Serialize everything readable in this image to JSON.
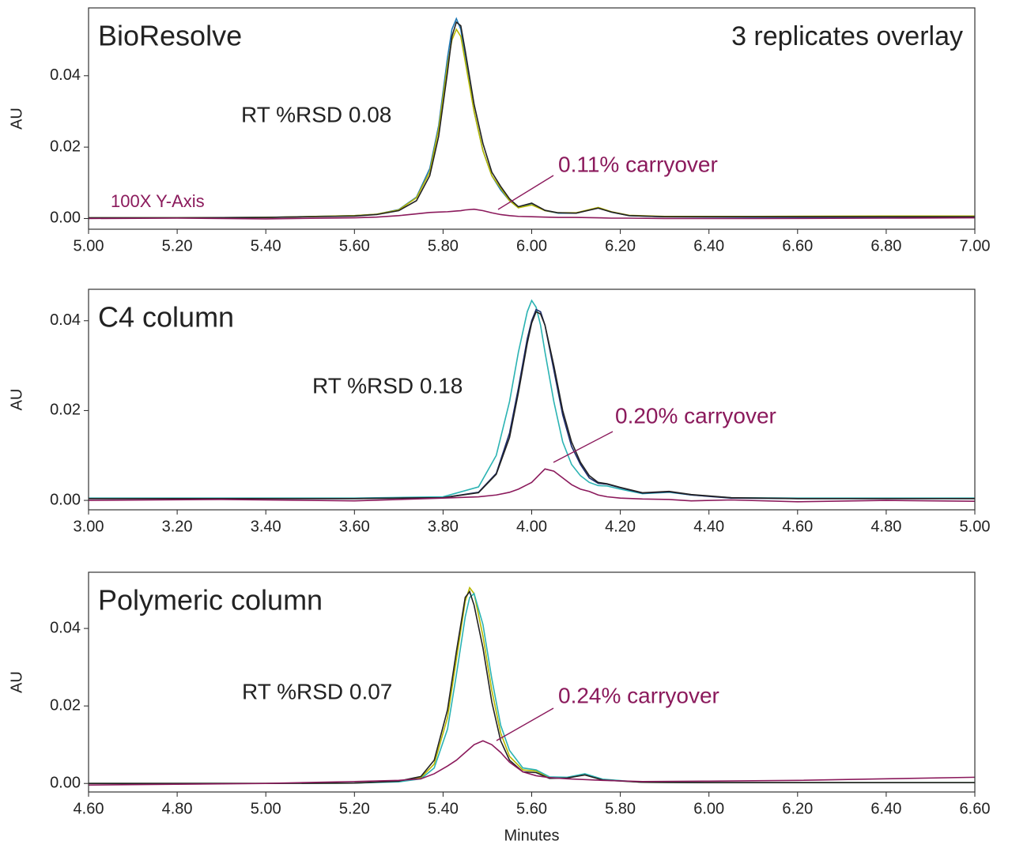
{
  "chart_data": [
    {
      "type": "line",
      "title": "BioResolve",
      "subtitle": "3 replicates overlay",
      "rsd_label": "RT %RSD 0.08",
      "carryover_label": "0.11% carryover",
      "scale_label": "100X Y-Axis",
      "ylabel": "AU",
      "x": [
        5.0,
        5.2,
        5.4,
        5.6,
        5.65,
        5.7,
        5.74,
        5.77,
        5.79,
        5.81,
        5.82,
        5.83,
        5.84,
        5.85,
        5.87,
        5.89,
        5.91,
        5.93,
        5.95,
        5.97,
        6.0,
        6.03,
        6.06,
        6.1,
        6.15,
        6.18,
        6.22,
        6.3,
        6.5,
        6.8,
        7.0
      ],
      "series": [
        {
          "color": "#1f78b4",
          "values": [
            0.0002,
            0.0002,
            0.0003,
            0.0008,
            0.0012,
            0.0025,
            0.006,
            0.014,
            0.026,
            0.045,
            0.053,
            0.056,
            0.053,
            0.045,
            0.03,
            0.019,
            0.012,
            0.008,
            0.005,
            0.003,
            0.0042,
            0.0022,
            0.0015,
            0.0015,
            0.003,
            0.0018,
            0.0008,
            0.0005,
            0.0004,
            0.0004,
            0.0004
          ]
        },
        {
          "color": "#b8b800",
          "values": [
            0.0002,
            0.0002,
            0.0003,
            0.0008,
            0.0012,
            0.0024,
            0.0058,
            0.013,
            0.025,
            0.043,
            0.05,
            0.053,
            0.051,
            0.044,
            0.03,
            0.019,
            0.012,
            0.0085,
            0.005,
            0.003,
            0.0038,
            0.0022,
            0.0016,
            0.0016,
            0.0031,
            0.0019,
            0.0009,
            0.0006,
            0.0006,
            0.0007,
            0.0007
          ]
        },
        {
          "color": "#222222",
          "values": [
            0.0002,
            0.0002,
            0.0003,
            0.0007,
            0.0011,
            0.0022,
            0.005,
            0.012,
            0.023,
            0.041,
            0.051,
            0.055,
            0.054,
            0.047,
            0.032,
            0.021,
            0.013,
            0.009,
            0.0055,
            0.0033,
            0.0043,
            0.0023,
            0.0016,
            0.0015,
            0.0029,
            0.0018,
            0.0008,
            0.0005,
            0.0005,
            0.0005,
            0.0005
          ]
        },
        {
          "color": "#8b1a5c",
          "values": [
            0,
            0.0001,
            -0.0001,
            0.0002,
            0.0004,
            0.0008,
            0.0013,
            0.0017,
            0.0018,
            0.0019,
            0.002,
            0.0021,
            0.0022,
            0.0024,
            0.0026,
            0.0022,
            0.0016,
            0.0011,
            0.0008,
            0.0006,
            0.0005,
            0.0004,
            0.0003,
            0.0003,
            0.0002,
            0.0001,
            0.0001,
            0,
            0,
            0.0001,
            0.0002
          ]
        }
      ],
      "xlim": [
        5.0,
        7.0
      ],
      "ylim": [
        -0.003,
        0.059
      ],
      "xticks": [
        {
          "value": 5.0,
          "label": "5.00"
        },
        {
          "value": 5.2,
          "label": "5.20"
        },
        {
          "value": 5.4,
          "label": "5.40"
        },
        {
          "value": 5.6,
          "label": "5.60"
        },
        {
          "value": 5.8,
          "label": "5.80"
        },
        {
          "value": 6.0,
          "label": "6.00"
        },
        {
          "value": 6.2,
          "label": "6.20"
        },
        {
          "value": 6.4,
          "label": "6.40"
        },
        {
          "value": 6.6,
          "label": "6.60"
        },
        {
          "value": 6.8,
          "label": "6.80"
        },
        {
          "value": 7.0,
          "label": "7.00"
        }
      ],
      "yticks": [
        {
          "value": 0,
          "label": "0.00"
        },
        0.02,
        0.04
      ]
    },
    {
      "type": "line",
      "title": "C4 column",
      "rsd_label": "RT %RSD 0.18",
      "carryover_label": "0.20% carryover",
      "ylabel": "AU",
      "x": [
        3.0,
        3.3,
        3.6,
        3.8,
        3.88,
        3.92,
        3.95,
        3.97,
        3.99,
        4.0,
        4.01,
        4.02,
        4.03,
        4.05,
        4.07,
        4.09,
        4.11,
        4.13,
        4.15,
        4.17,
        4.2,
        4.25,
        4.31,
        4.36,
        4.45,
        4.6,
        4.8,
        5.0
      ],
      "series": [
        {
          "color": "#2bb3b3",
          "values": [
            0.0005,
            0.0005,
            0.0005,
            0.0008,
            0.003,
            0.01,
            0.022,
            0.033,
            0.042,
            0.0445,
            0.043,
            0.039,
            0.033,
            0.022,
            0.013,
            0.008,
            0.0055,
            0.004,
            0.0033,
            0.0032,
            0.0025,
            0.0015,
            0.0018,
            0.0012,
            0.0006,
            0.0005,
            0.0005,
            0.0005
          ]
        },
        {
          "color": "#1b2a6b",
          "values": [
            0.0004,
            0.0004,
            0.0004,
            0.0006,
            0.0018,
            0.006,
            0.015,
            0.025,
            0.036,
            0.04,
            0.0425,
            0.042,
            0.039,
            0.029,
            0.019,
            0.012,
            0.008,
            0.005,
            0.0038,
            0.0036,
            0.0028,
            0.0016,
            0.0019,
            0.0012,
            0.0005,
            0.0004,
            0.0004,
            0.0004
          ]
        },
        {
          "color": "#222222",
          "values": [
            0.0004,
            0.0004,
            0.0004,
            0.0006,
            0.0017,
            0.0058,
            0.014,
            0.024,
            0.035,
            0.0395,
            0.042,
            0.0415,
            0.039,
            0.03,
            0.02,
            0.013,
            0.0085,
            0.0055,
            0.004,
            0.0037,
            0.0029,
            0.0017,
            0.002,
            0.0013,
            0.0006,
            0.0004,
            0.0004,
            0.0004
          ]
        },
        {
          "color": "#8b1a5c",
          "values": [
            0,
            0.0002,
            -0.0001,
            0.0005,
            0.0008,
            0.0012,
            0.0018,
            0.0025,
            0.0035,
            0.004,
            0.005,
            0.006,
            0.007,
            0.0065,
            0.005,
            0.0035,
            0.0025,
            0.002,
            0.0012,
            0.0008,
            0.0005,
            0.0003,
            0.0002,
            -0.0001,
            0.0001,
            -0.0003,
            0,
            -0.0002
          ]
        }
      ],
      "xlim": [
        3.0,
        5.0
      ],
      "ylim": [
        -0.0021,
        0.047
      ],
      "xticks": [
        {
          "value": 3.0,
          "label": "3.00"
        },
        {
          "value": 3.2,
          "label": "3.20"
        },
        {
          "value": 3.4,
          "label": "3.40"
        },
        {
          "value": 3.6,
          "label": "3.60"
        },
        {
          "value": 3.8,
          "label": "3.80"
        },
        {
          "value": 4.0,
          "label": "4.00"
        },
        {
          "value": 4.2,
          "label": "4.20"
        },
        {
          "value": 4.4,
          "label": "4.40"
        },
        {
          "value": 4.6,
          "label": "4.60"
        },
        {
          "value": 4.8,
          "label": "4.80"
        },
        {
          "value": 5.0,
          "label": "5.00"
        }
      ],
      "yticks": [
        {
          "value": 0,
          "label": "0.00"
        },
        0.02,
        0.04
      ]
    },
    {
      "type": "line",
      "title": "Polymeric column",
      "rsd_label": "RT %RSD 0.07",
      "carryover_label": "0.24% carryover",
      "ylabel": "AU",
      "xlabel": "Minutes",
      "x": [
        4.6,
        4.8,
        5.0,
        5.2,
        5.3,
        5.35,
        5.38,
        5.41,
        5.43,
        5.45,
        5.46,
        5.47,
        5.49,
        5.51,
        5.53,
        5.55,
        5.58,
        5.61,
        5.64,
        5.68,
        5.72,
        5.76,
        5.85,
        6.0,
        6.2,
        6.4,
        6.6
      ],
      "series": [
        {
          "color": "#b8b800",
          "values": [
            0,
            0,
            0,
            0.0001,
            0.0005,
            0.0015,
            0.005,
            0.017,
            0.032,
            0.047,
            0.0505,
            0.049,
            0.038,
            0.024,
            0.013,
            0.007,
            0.0035,
            0.0032,
            0.0015,
            0.0015,
            0.0024,
            0.001,
            0.0003,
            0.0002,
            0.0002,
            0.0002,
            0.0002
          ]
        },
        {
          "color": "#2bb3b3",
          "values": [
            0,
            0,
            0,
            0.0001,
            0.0004,
            0.0012,
            0.004,
            0.014,
            0.028,
            0.043,
            0.048,
            0.049,
            0.041,
            0.027,
            0.015,
            0.0085,
            0.004,
            0.0035,
            0.0017,
            0.0016,
            0.0025,
            0.0011,
            0.0003,
            0.0002,
            0.0002,
            0.0002,
            0.0002
          ]
        },
        {
          "color": "#222222",
          "values": [
            0,
            0,
            0,
            0.0001,
            0.0006,
            0.0018,
            0.006,
            0.019,
            0.034,
            0.048,
            0.0495,
            0.046,
            0.035,
            0.021,
            0.011,
            0.006,
            0.003,
            0.0028,
            0.0013,
            0.0014,
            0.0022,
            0.0009,
            0.0003,
            0.0002,
            0.0002,
            0.0002,
            0.0002
          ]
        },
        {
          "color": "#8b1a5c",
          "values": [
            -0.0004,
            -0.0002,
            0,
            0.0005,
            0.0008,
            0.0012,
            0.0025,
            0.0045,
            0.006,
            0.008,
            0.009,
            0.01,
            0.011,
            0.01,
            0.008,
            0.0055,
            0.003,
            0.002,
            0.0015,
            0.0012,
            0.001,
            0.0008,
            0.0005,
            0.0006,
            0.0008,
            0.0012,
            0.0016
          ]
        }
      ],
      "xlim": [
        4.6,
        6.6
      ],
      "ylim": [
        -0.0022,
        0.0545
      ],
      "xticks": [
        {
          "value": 4.6,
          "label": "4.60"
        },
        {
          "value": 4.8,
          "label": "4.80"
        },
        {
          "value": 5.0,
          "label": "5.00"
        },
        {
          "value": 5.2,
          "label": "5.20"
        },
        {
          "value": 5.4,
          "label": "5.40"
        },
        {
          "value": 5.6,
          "label": "5.60"
        },
        {
          "value": 5.8,
          "label": "5.80"
        },
        {
          "value": 6.0,
          "label": "6.00"
        },
        {
          "value": 6.2,
          "label": "6.20"
        },
        {
          "value": 6.4,
          "label": "6.40"
        },
        {
          "value": 6.6,
          "label": "6.60"
        }
      ],
      "yticks": [
        {
          "value": 0,
          "label": "0.00"
        },
        0.02,
        0.04
      ]
    }
  ]
}
